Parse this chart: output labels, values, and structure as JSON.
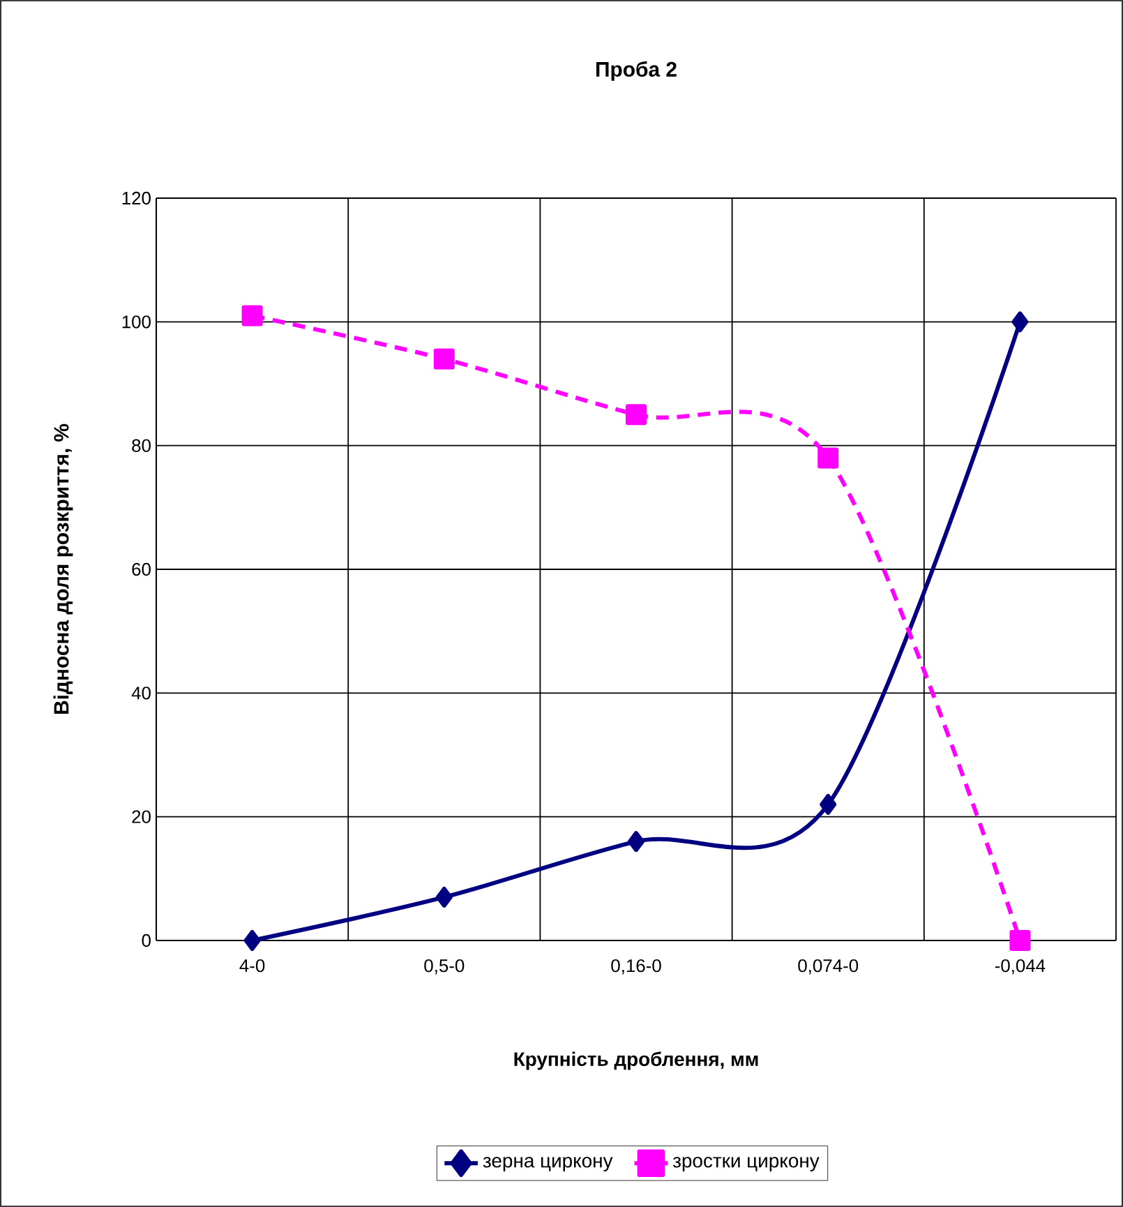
{
  "chart_data": {
    "type": "line",
    "title": "Проба 2",
    "xlabel": "Крупність дроблення, мм",
    "ylabel": "Відносна доля розкриття, %",
    "categories": [
      "4-0",
      "0,5-0",
      "0,16-0",
      "0,074-0",
      "-0,044"
    ],
    "series": [
      {
        "name": "зерна циркону",
        "color": "#000080",
        "values": [
          0,
          7,
          16,
          22,
          100
        ],
        "marker": "diamond",
        "line_style": "solid"
      },
      {
        "name": "зростки циркону",
        "color": "#ff00ff",
        "values": [
          101,
          94,
          85,
          78,
          0
        ],
        "marker": "square",
        "line_style": "dashed"
      }
    ],
    "ylim": [
      0,
      120
    ],
    "yticks": [
      0,
      20,
      40,
      60,
      80,
      100,
      120
    ],
    "grid": true,
    "legend": "bottom"
  }
}
